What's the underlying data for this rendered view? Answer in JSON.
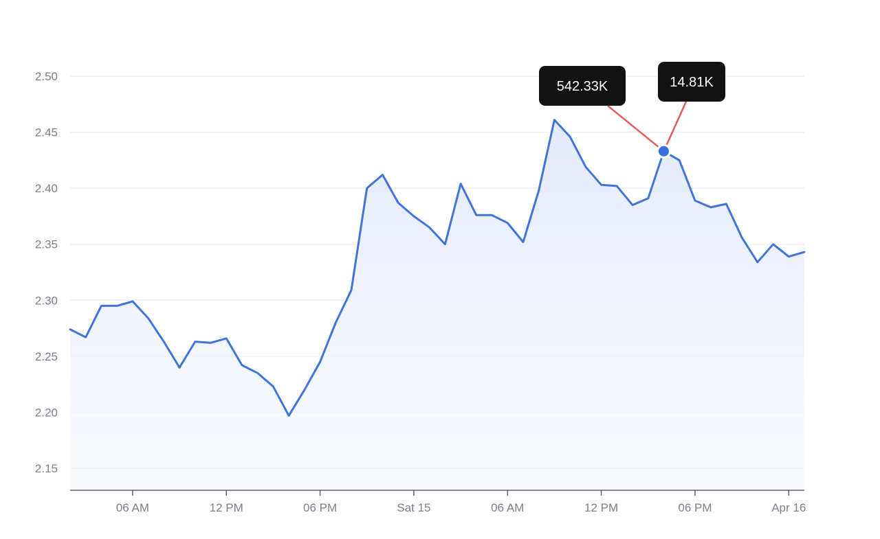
{
  "chart_data": {
    "type": "area",
    "ylim": [
      2.13,
      2.5
    ],
    "y_ticks": [
      "2.15",
      "2.20",
      "2.25",
      "2.30",
      "2.35",
      "2.40",
      "2.45",
      "2.50"
    ],
    "y_tick_values": [
      2.15,
      2.2,
      2.25,
      2.3,
      2.35,
      2.4,
      2.45,
      2.5
    ],
    "x_range_hours": [
      0,
      47
    ],
    "x_ticks": [
      {
        "label": "06 AM",
        "h": 4
      },
      {
        "label": "12 PM",
        "h": 10
      },
      {
        "label": "06 PM",
        "h": 16
      },
      {
        "label": "Sat 15",
        "h": 22
      },
      {
        "label": "06 AM",
        "h": 28
      },
      {
        "label": "12 PM",
        "h": 34
      },
      {
        "label": "06 PM",
        "h": 40
      },
      {
        "label": "Apr 16",
        "h": 46
      }
    ],
    "series": [
      {
        "values": [
          [
            0,
            2.274
          ],
          [
            1,
            2.267
          ],
          [
            2,
            2.295
          ],
          [
            3,
            2.295
          ],
          [
            4,
            2.299
          ],
          [
            5,
            2.284
          ],
          [
            6,
            2.263
          ],
          [
            7,
            2.24
          ],
          [
            8,
            2.263
          ],
          [
            9,
            2.262
          ],
          [
            10,
            2.266
          ],
          [
            11,
            2.242
          ],
          [
            12,
            2.235
          ],
          [
            13,
            2.223
          ],
          [
            14,
            2.197
          ],
          [
            15,
            2.22
          ],
          [
            16,
            2.245
          ],
          [
            17,
            2.28
          ],
          [
            18,
            2.309
          ],
          [
            19,
            2.4
          ],
          [
            20,
            2.412
          ],
          [
            21,
            2.387
          ],
          [
            22,
            2.375
          ],
          [
            23,
            2.365
          ],
          [
            24,
            2.35
          ],
          [
            25,
            2.404
          ],
          [
            26,
            2.376
          ],
          [
            27,
            2.376
          ],
          [
            28,
            2.369
          ],
          [
            29,
            2.352
          ],
          [
            30,
            2.398
          ],
          [
            31,
            2.461
          ],
          [
            32,
            2.446
          ],
          [
            33,
            2.419
          ],
          [
            34,
            2.403
          ],
          [
            35,
            2.402
          ],
          [
            36,
            2.385
          ],
          [
            37,
            2.391
          ],
          [
            38,
            2.433
          ],
          [
            39,
            2.425
          ],
          [
            40,
            2.389
          ],
          [
            41,
            2.383
          ],
          [
            42,
            2.386
          ],
          [
            43,
            2.356
          ],
          [
            44,
            2.334
          ],
          [
            45,
            2.35
          ],
          [
            46,
            2.339
          ],
          [
            47,
            2.343
          ]
        ]
      }
    ],
    "highlight_point": {
      "h": 38,
      "y": 2.433
    },
    "callouts": [
      {
        "label": "542.33K"
      },
      {
        "label": "14.81K"
      }
    ],
    "colors": {
      "line": "#3f74db",
      "fill_top": "#e3e9fb",
      "callout_line": "#e05a5a",
      "callout_bg": "#121212"
    },
    "grid": true,
    "legend": "none"
  }
}
